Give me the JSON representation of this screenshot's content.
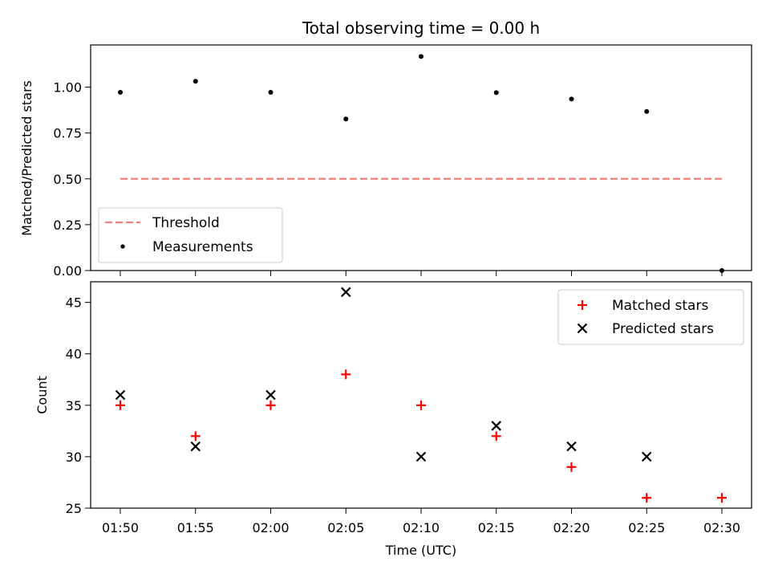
{
  "chart_data": {
    "title": "Total observing time = 0.00 h",
    "xlabel": "Time (UTC)",
    "x_ticks": [
      "01:50",
      "01:55",
      "02:00",
      "02:05",
      "02:10",
      "02:15",
      "02:20",
      "02:25",
      "02:30"
    ],
    "top_panel": {
      "type": "scatter",
      "ylabel": "Matched/Predicted stars",
      "ylim": [
        0,
        1.23
      ],
      "y_ticks": [
        "0.00",
        "0.25",
        "0.50",
        "0.75",
        "1.00"
      ],
      "legend_placement": "lower-left",
      "series": [
        {
          "name": "Threshold",
          "kind": "dashed-line",
          "color": "#f08080",
          "x": [
            "01:50",
            "02:30"
          ],
          "y": [
            0.5,
            0.5
          ]
        },
        {
          "name": "Measurements",
          "kind": "dot",
          "color": "#000000",
          "x": [
            "01:50",
            "01:55",
            "02:00",
            "02:05",
            "02:10",
            "02:15",
            "02:20",
            "02:25",
            "02:30"
          ],
          "y": [
            0.972,
            1.032,
            0.972,
            0.826,
            1.167,
            0.97,
            0.935,
            0.867,
            0.0
          ]
        }
      ]
    },
    "bottom_panel": {
      "type": "scatter",
      "ylabel": "Count",
      "ylim": [
        25,
        47
      ],
      "y_ticks": [
        "25",
        "30",
        "35",
        "40",
        "45"
      ],
      "legend_placement": "top-right",
      "series": [
        {
          "name": "Matched stars",
          "marker": "plus",
          "color": "#ff0000",
          "x": [
            "01:50",
            "01:55",
            "02:00",
            "02:05",
            "02:10",
            "02:15",
            "02:20",
            "02:25",
            "02:30"
          ],
          "y": [
            35,
            32,
            35,
            38,
            35,
            32,
            29,
            26,
            26
          ]
        },
        {
          "name": "Predicted stars",
          "marker": "cross",
          "color": "#000000",
          "x": [
            "01:50",
            "01:55",
            "02:00",
            "02:05",
            "02:10",
            "02:15",
            "02:20",
            "02:25"
          ],
          "y": [
            36,
            31,
            36,
            46,
            30,
            33,
            31,
            30
          ]
        }
      ]
    }
  }
}
